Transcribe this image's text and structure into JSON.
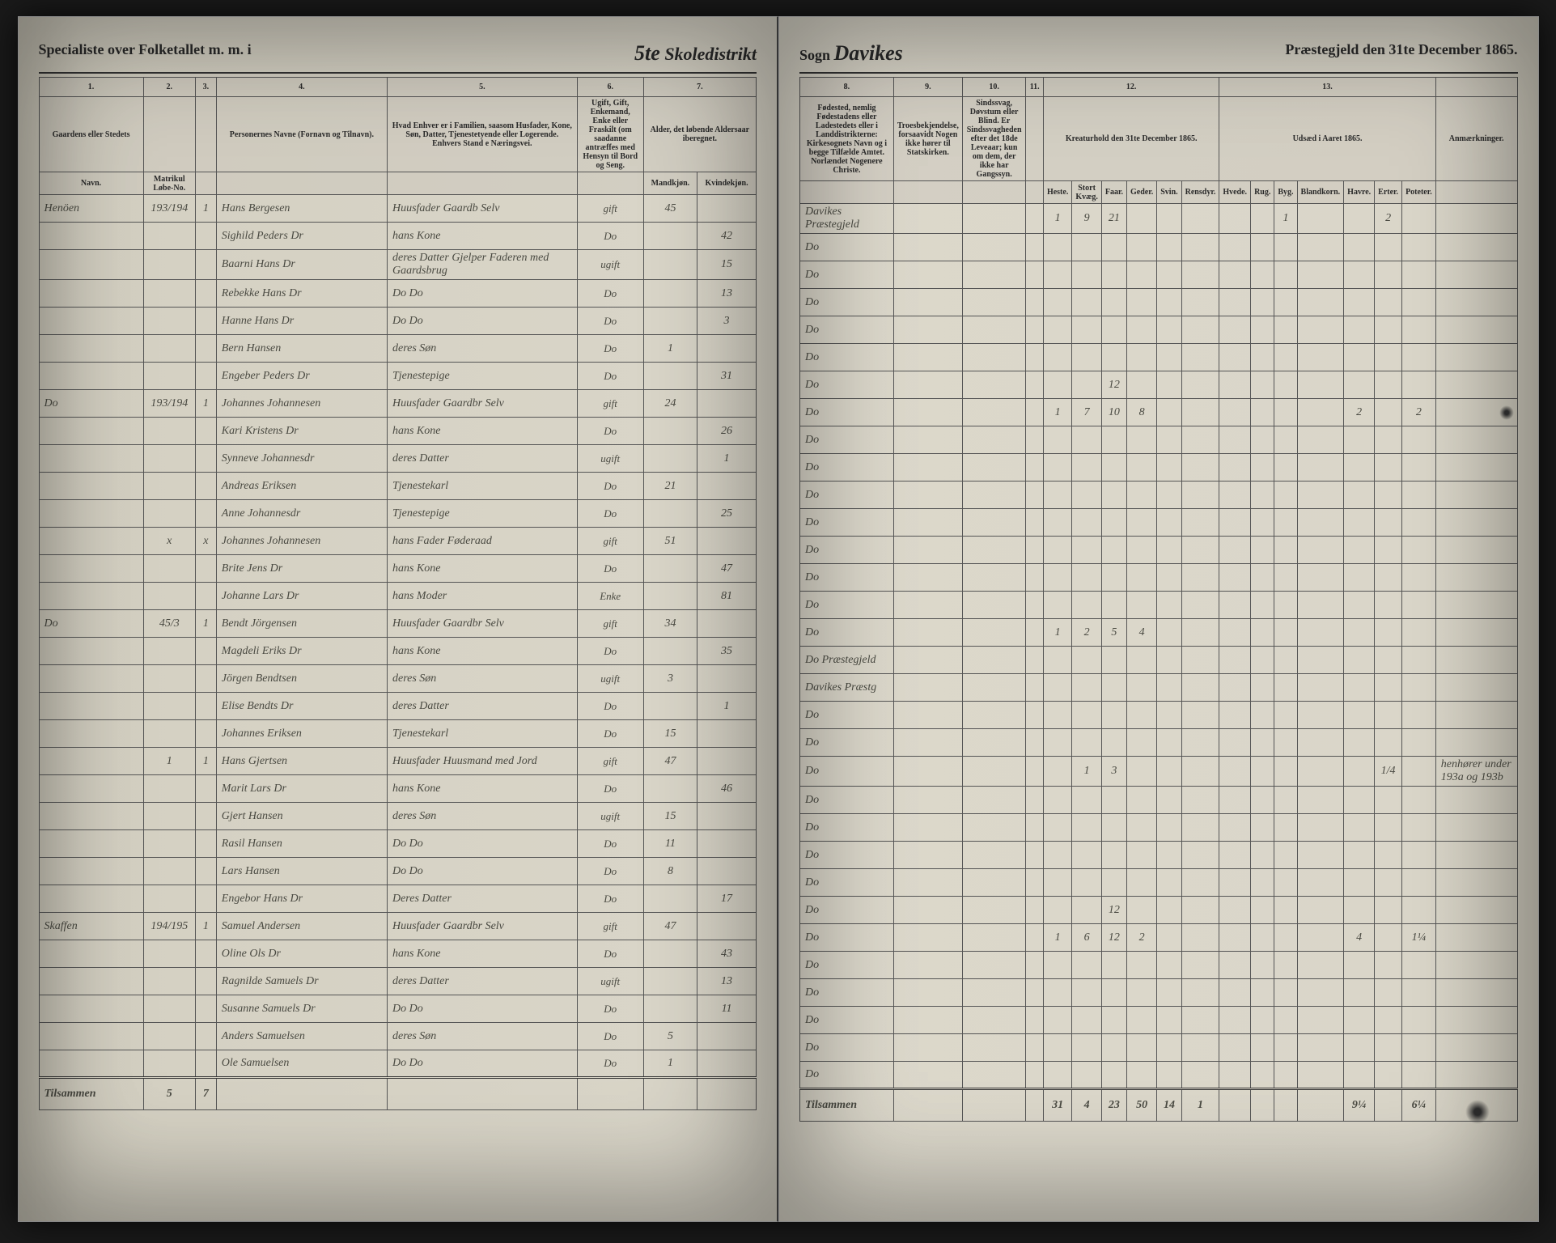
{
  "header": {
    "left_title": "Specialiste over Folketallet m. m. i",
    "district_num": "5te",
    "district_label": "Skoledistrikt",
    "sogn_label": "Sogn",
    "sogn_name": "Davikes",
    "right_title": "Præstegjeld den 31te December 1865."
  },
  "left_columns": {
    "nums": [
      "1.",
      "2.",
      "3.",
      "4.",
      "5.",
      "6.",
      "7."
    ],
    "headers": [
      "Gaardens eller Stedets",
      "",
      "",
      "Personernes Navne (Fornavn og Tilnavn).",
      "Hvad Enhver er i Familien, saasom Husfader, Kone, Søn, Datter, Tjenestetyende eller Logerende. Enhvers Stand e Næringsvei.",
      "Ugift, Gift, Enkemand, Enke eller Fraskilt (om saadanne antræffes med Hensyn til Bord og Seng.",
      "Alder, det løbende Aldersaar iberegnet."
    ],
    "sub_headers": [
      "Navn.",
      "Matrikul Løbe-No.",
      "",
      "",
      "",
      "",
      "",
      "Mandkjøn.",
      "Kvindekjøn."
    ]
  },
  "right_columns": {
    "nums": [
      "8.",
      "9.",
      "10.",
      "11.",
      "12.",
      "13."
    ],
    "headers": [
      "Fødested, nemlig Fødestadens eller Ladestedets eller i Landdistrikterne: Kirkesognets Navn og i begge Tilfælde Amtet. Norlændet Nogenere Christe.",
      "Troesbekjendelse, forsaavidt Nogen ikke hører til Statskirken.",
      "Sindssvag, Døvstum eller Blind. Er Sindssvagheden efter det 18de Leveaar; kun om dem, der ikke har Gangssyn.",
      "",
      "Kreaturhold den 31te December 1865.",
      "Udsæd i Aaret 1865."
    ],
    "col12_sub": [
      "Heste.",
      "Stort Kvæg.",
      "Faar.",
      "Geder.",
      "Svin.",
      "Rensdyr."
    ],
    "col13_sub": [
      "Hvede.",
      "Rug.",
      "Byg.",
      "Blandkorn.",
      "Havre.",
      "Erter.",
      "Poteter."
    ],
    "remarks": "Anmærkninger."
  },
  "rows_left": [
    {
      "c1": "Henöen",
      "c2": "193/194",
      "c3": "1",
      "c4": "Hans Bergesen",
      "c5": "Huusfader Gaardb Selv",
      "c6": "gift",
      "c7m": "45",
      "c7f": ""
    },
    {
      "c1": "",
      "c2": "",
      "c3": "",
      "c4": "Sighild Peders Dr",
      "c5": "hans Kone",
      "c6": "Do",
      "c7m": "",
      "c7f": "42"
    },
    {
      "c1": "",
      "c2": "",
      "c3": "",
      "c4": "Baarni Hans Dr",
      "c5": "deres Datter Gjelper Faderen med Gaardsbrug",
      "c6": "ugift",
      "c7m": "",
      "c7f": "15"
    },
    {
      "c1": "",
      "c2": "",
      "c3": "",
      "c4": "Rebekke Hans Dr",
      "c5": "Do   Do",
      "c6": "Do",
      "c7m": "",
      "c7f": "13"
    },
    {
      "c1": "",
      "c2": "",
      "c3": "",
      "c4": "Hanne Hans Dr",
      "c5": "Do   Do",
      "c6": "Do",
      "c7m": "",
      "c7f": "3"
    },
    {
      "c1": "",
      "c2": "",
      "c3": "",
      "c4": "Bern Hansen",
      "c5": "deres Søn",
      "c6": "Do",
      "c7m": "1",
      "c7f": ""
    },
    {
      "c1": "",
      "c2": "",
      "c3": "",
      "c4": "Engeber Peders Dr",
      "c5": "Tjenestepige",
      "c6": "Do",
      "c7m": "",
      "c7f": "31"
    },
    {
      "c1": "Do",
      "c2": "193/194",
      "c3": "1",
      "c4": "Johannes Johannesen",
      "c5": "Huusfader Gaardbr Selv",
      "c6": "gift",
      "c7m": "24",
      "c7f": ""
    },
    {
      "c1": "",
      "c2": "",
      "c3": "",
      "c4": "Kari Kristens Dr",
      "c5": "hans Kone",
      "c6": "Do",
      "c7m": "",
      "c7f": "26"
    },
    {
      "c1": "",
      "c2": "",
      "c3": "",
      "c4": "Synneve Johannesdr",
      "c5": "deres Datter",
      "c6": "ugift",
      "c7m": "",
      "c7f": "1"
    },
    {
      "c1": "",
      "c2": "",
      "c3": "",
      "c4": "Andreas Eriksen",
      "c5": "Tjenestekarl",
      "c6": "Do",
      "c7m": "21",
      "c7f": ""
    },
    {
      "c1": "",
      "c2": "",
      "c3": "",
      "c4": "Anne Johannesdr",
      "c5": "Tjenestepige",
      "c6": "Do",
      "c7m": "",
      "c7f": "25"
    },
    {
      "c1": "",
      "c2": "x",
      "c3": "x",
      "c4": "Johannes Johannesen",
      "c5": "hans Fader Føderaad",
      "c6": "gift",
      "c7m": "51",
      "c7f": ""
    },
    {
      "c1": "",
      "c2": "",
      "c3": "",
      "c4": "Brite Jens Dr",
      "c5": "hans Kone",
      "c6": "Do",
      "c7m": "",
      "c7f": "47"
    },
    {
      "c1": "",
      "c2": "",
      "c3": "",
      "c4": "Johanne Lars Dr",
      "c5": "hans Moder",
      "c6": "Enke",
      "c7m": "",
      "c7f": "81"
    },
    {
      "c1": "Do",
      "c2": "45/3",
      "c3": "1",
      "c4": "Bendt Jörgensen",
      "c5": "Huusfader Gaardbr Selv",
      "c6": "gift",
      "c7m": "34",
      "c7f": ""
    },
    {
      "c1": "",
      "c2": "",
      "c3": "",
      "c4": "Magdeli Eriks Dr",
      "c5": "hans Kone",
      "c6": "Do",
      "c7m": "",
      "c7f": "35"
    },
    {
      "c1": "",
      "c2": "",
      "c3": "",
      "c4": "Jörgen Bendtsen",
      "c5": "deres Søn",
      "c6": "ugift",
      "c7m": "3",
      "c7f": ""
    },
    {
      "c1": "",
      "c2": "",
      "c3": "",
      "c4": "Elise Bendts Dr",
      "c5": "deres Datter",
      "c6": "Do",
      "c7m": "",
      "c7f": "1"
    },
    {
      "c1": "",
      "c2": "",
      "c3": "",
      "c4": "Johannes Eriksen",
      "c5": "Tjenestekarl",
      "c6": "Do",
      "c7m": "15",
      "c7f": ""
    },
    {
      "c1": "",
      "c2": "1",
      "c3": "1",
      "c4": "Hans Gjertsen",
      "c5": "Huusfader Huusmand med Jord",
      "c6": "gift",
      "c7m": "47",
      "c7f": ""
    },
    {
      "c1": "",
      "c2": "",
      "c3": "",
      "c4": "Marit Lars Dr",
      "c5": "hans Kone",
      "c6": "Do",
      "c7m": "",
      "c7f": "46"
    },
    {
      "c1": "",
      "c2": "",
      "c3": "",
      "c4": "Gjert Hansen",
      "c5": "deres Søn",
      "c6": "ugift",
      "c7m": "15",
      "c7f": ""
    },
    {
      "c1": "",
      "c2": "",
      "c3": "",
      "c4": "Rasil Hansen",
      "c5": "Do   Do",
      "c6": "Do",
      "c7m": "11",
      "c7f": ""
    },
    {
      "c1": "",
      "c2": "",
      "c3": "",
      "c4": "Lars Hansen",
      "c5": "Do   Do",
      "c6": "Do",
      "c7m": "8",
      "c7f": ""
    },
    {
      "c1": "",
      "c2": "",
      "c3": "",
      "c4": "Engebor Hans Dr",
      "c5": "Deres Datter",
      "c6": "Do",
      "c7m": "",
      "c7f": "17"
    },
    {
      "c1": "Skaffen",
      "c2": "194/195",
      "c3": "1",
      "c4": "Samuel Andersen",
      "c5": "Huusfader Gaardbr Selv",
      "c6": "gift",
      "c7m": "47",
      "c7f": ""
    },
    {
      "c1": "",
      "c2": "",
      "c3": "",
      "c4": "Oline Ols Dr",
      "c5": "hans Kone",
      "c6": "Do",
      "c7m": "",
      "c7f": "43"
    },
    {
      "c1": "",
      "c2": "",
      "c3": "",
      "c4": "Ragnilde Samuels Dr",
      "c5": "deres Datter",
      "c6": "ugift",
      "c7m": "",
      "c7f": "13"
    },
    {
      "c1": "",
      "c2": "",
      "c3": "",
      "c4": "Susanne Samuels Dr",
      "c5": "Do   Do",
      "c6": "Do",
      "c7m": "",
      "c7f": "11"
    },
    {
      "c1": "",
      "c2": "",
      "c3": "",
      "c4": "Anders Samuelsen",
      "c5": "deres Søn",
      "c6": "Do",
      "c7m": "5",
      "c7f": ""
    },
    {
      "c1": "",
      "c2": "",
      "c3": "",
      "c4": "Ole Samuelsen",
      "c5": "Do   Do",
      "c6": "Do",
      "c7m": "1",
      "c7f": ""
    }
  ],
  "rows_right": [
    {
      "c8": "Davikes Præstegjeld",
      "c12": [
        "1",
        "9",
        "21",
        "",
        "",
        ""
      ],
      "c13": [
        "",
        "",
        "1",
        "",
        "",
        "2",
        ""
      ]
    },
    {
      "c8": "Do"
    },
    {
      "c8": "Do"
    },
    {
      "c8": "Do"
    },
    {
      "c8": "Do"
    },
    {
      "c8": "Do"
    },
    {
      "c8": "Do",
      "c12": [
        "",
        "",
        "12",
        "",
        "",
        ""
      ]
    },
    {
      "c8": "Do",
      "c12": [
        "1",
        "7",
        "10",
        "8",
        "",
        ""
      ],
      "c13": [
        "",
        "",
        "",
        "",
        "2",
        "",
        "2"
      ]
    },
    {
      "c8": "Do"
    },
    {
      "c8": "Do"
    },
    {
      "c8": "Do"
    },
    {
      "c8": "Do"
    },
    {
      "c8": "Do"
    },
    {
      "c8": "Do"
    },
    {
      "c8": "Do"
    },
    {
      "c8": "Do",
      "c12": [
        "1",
        "2",
        "5",
        "4",
        "",
        ""
      ]
    },
    {
      "c8": "Do Præstegjeld"
    },
    {
      "c8": "Davikes Præstg"
    },
    {
      "c8": "Do"
    },
    {
      "c8": "Do"
    },
    {
      "c8": "Do",
      "c12": [
        "",
        "1",
        "3",
        "",
        "",
        ""
      ],
      "c13": [
        "",
        "",
        "",
        "",
        "",
        "1/4",
        ""
      ],
      "remarks": "henhører under 193a og 193b"
    },
    {
      "c8": "Do"
    },
    {
      "c8": "Do"
    },
    {
      "c8": "Do"
    },
    {
      "c8": "Do"
    },
    {
      "c8": "Do",
      "c12": [
        "",
        "",
        "12",
        "",
        "",
        ""
      ]
    },
    {
      "c8": "Do",
      "c12": [
        "1",
        "6",
        "12",
        "2",
        "",
        ""
      ],
      "c13": [
        "",
        "",
        "",
        "",
        "4",
        "",
        "1¼"
      ]
    },
    {
      "c8": "Do"
    },
    {
      "c8": "Do"
    },
    {
      "c8": "Do"
    },
    {
      "c8": "Do"
    },
    {
      "c8": "Do"
    }
  ],
  "footer": {
    "left_label": "Tilsammen",
    "left_c2": "5",
    "left_c3": "7",
    "right_label": "Tilsammen",
    "right_totals_12": [
      "31",
      "4",
      "23",
      "50",
      "14",
      "1"
    ],
    "right_totals_13": [
      "",
      "",
      "",
      "",
      "9¼",
      "",
      "6¼"
    ]
  }
}
